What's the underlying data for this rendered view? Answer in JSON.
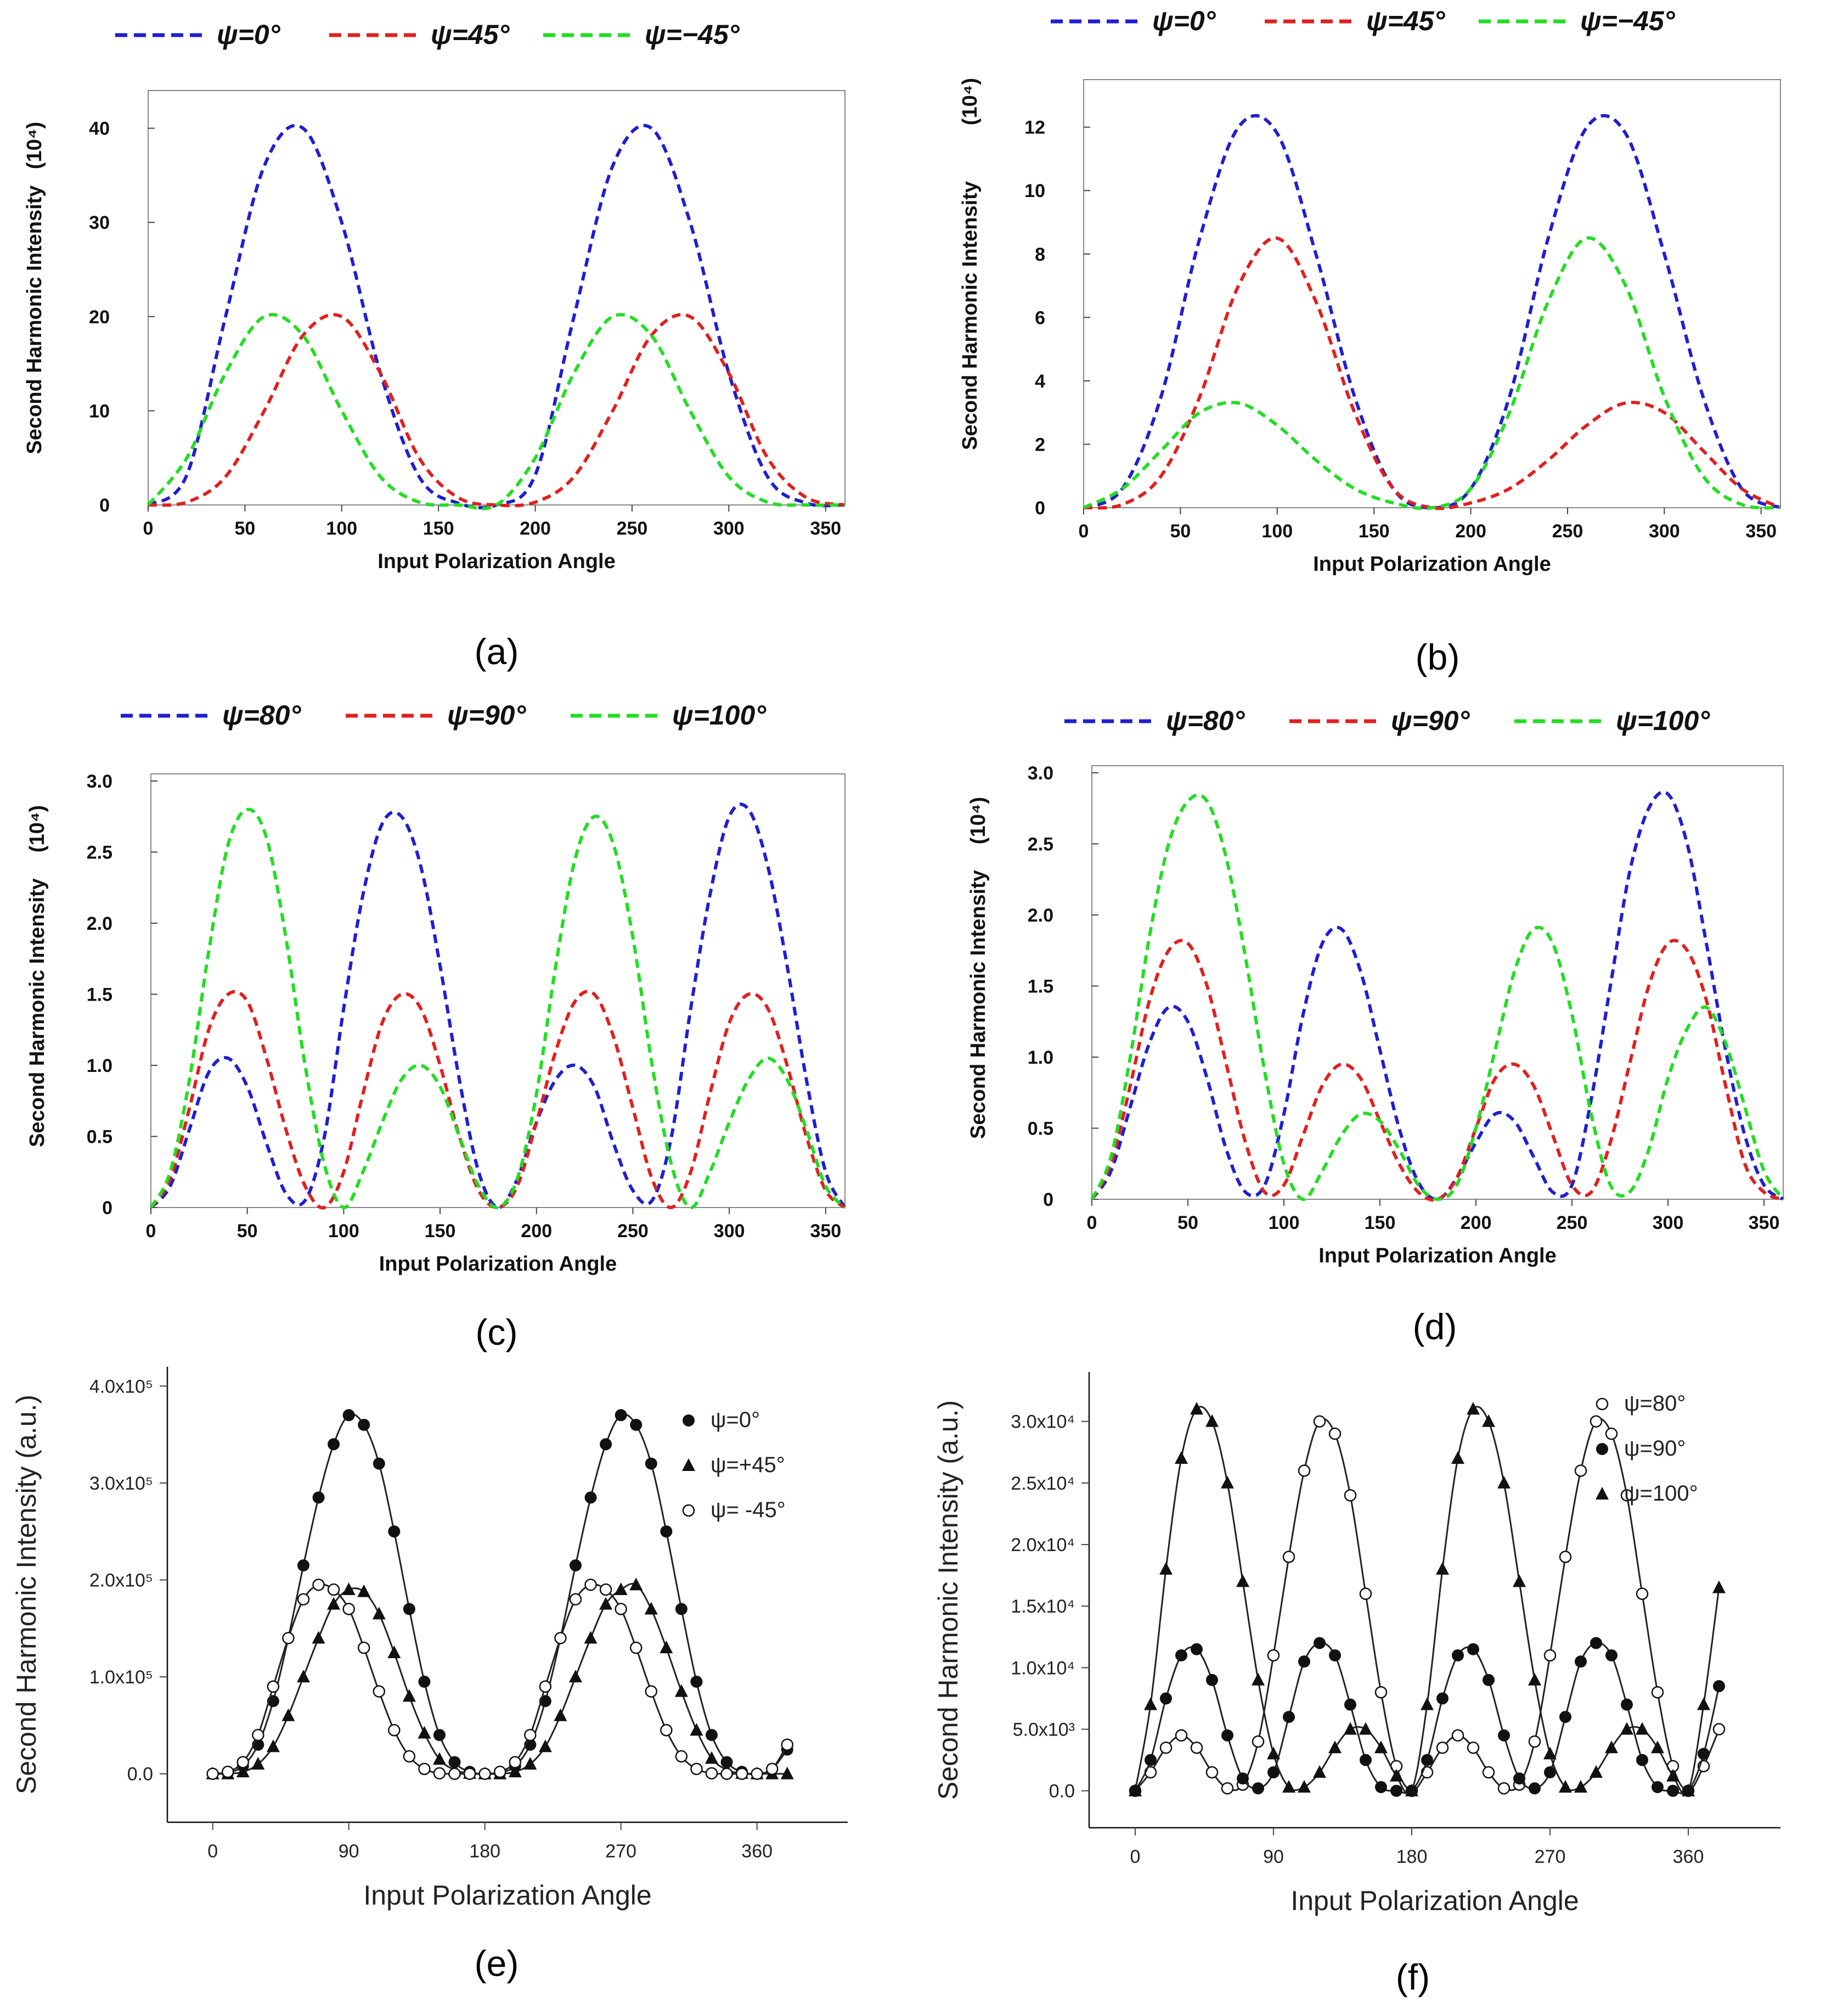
{
  "colors": {
    "blue": "#1f1fd0",
    "red": "#e02020",
    "green": "#22dd22",
    "black": "#111111"
  },
  "chart_data": [
    {
      "id": "a",
      "type": "line",
      "caption": "(a)",
      "xlabel": "Input  Polarization Angle",
      "ylabel": "Second Harmonic Intensity",
      "yunit": "(10⁴)",
      "xlim": [
        0,
        360
      ],
      "ylim": [
        0,
        44
      ],
      "xticks": [
        "0",
        "50",
        "100",
        "150",
        "200",
        "250",
        "300",
        "350"
      ],
      "yticks": [
        "0",
        "10",
        "20",
        "30",
        "40"
      ],
      "legend": [
        "ψ=0°",
        "ψ=45°",
        "ψ=−45°"
      ],
      "x": [
        0,
        20,
        40,
        60,
        80,
        100,
        120,
        140,
        160,
        180,
        200,
        220,
        240,
        260,
        280,
        300,
        320,
        340,
        360
      ],
      "series": [
        {
          "name": "ψ=0°",
          "color": "blue",
          "values": [
            0,
            3.2,
            20,
            36,
            40,
            30,
            14,
            3,
            0.2,
            0,
            3.2,
            20,
            36,
            40,
            30,
            14,
            3,
            0.2,
            0
          ]
        },
        {
          "name": "ψ=45°",
          "color": "red",
          "values": [
            0,
            0.3,
            3,
            10,
            18,
            20,
            14,
            5,
            0.8,
            0,
            0.3,
            3,
            10,
            18,
            20,
            14,
            5,
            0.8,
            0
          ]
        },
        {
          "name": "ψ=−45°",
          "color": "green",
          "values": [
            0,
            5,
            14,
            20,
            18,
            10,
            3,
            0.3,
            0,
            0,
            5,
            14,
            20,
            18,
            10,
            3,
            0.3,
            0,
            0
          ]
        }
      ]
    },
    {
      "id": "b",
      "type": "line",
      "caption": "(b)",
      "xlabel": "Input  Polarization Angle",
      "ylabel": "Second Harmonic Intensity",
      "yunit": "(10⁴)",
      "xlim": [
        0,
        360
      ],
      "ylim": [
        0,
        13.5
      ],
      "xticks": [
        "0",
        "50",
        "100",
        "150",
        "200",
        "250",
        "300",
        "350"
      ],
      "yticks": [
        "0",
        "2",
        "4",
        "6",
        "8",
        "10",
        "12"
      ],
      "legend": [
        "ψ=0°",
        "ψ=45°",
        "ψ=−45°"
      ],
      "x": [
        0,
        20,
        40,
        60,
        80,
        100,
        120,
        140,
        160,
        180,
        200,
        220,
        240,
        260,
        280,
        300,
        320,
        340,
        360
      ],
      "series": [
        {
          "name": "ψ=0°",
          "color": "blue",
          "values": [
            0,
            0.6,
            3.5,
            8.5,
            12,
            11.8,
            8,
            3.5,
            0.6,
            0,
            0.6,
            3.5,
            8.5,
            12,
            11.8,
            8,
            3.5,
            0.6,
            0
          ]
        },
        {
          "name": "ψ=45°",
          "color": "red",
          "values": [
            0,
            0.1,
            1,
            3.5,
            7,
            8.5,
            6.5,
            3,
            0.6,
            0,
            0.15,
            0.6,
            1.5,
            2.6,
            3.3,
            3,
            1.8,
            0.6,
            0
          ]
        },
        {
          "name": "ψ=−45°",
          "color": "green",
          "values": [
            0,
            0.6,
            1.8,
            3,
            3.3,
            2.6,
            1.5,
            0.6,
            0.15,
            0,
            0.6,
            3,
            6.5,
            8.5,
            7,
            3.5,
            1,
            0.1,
            0
          ]
        }
      ]
    },
    {
      "id": "c",
      "type": "line",
      "caption": "(c)",
      "xlabel": "Input Polarization Angle",
      "ylabel": "Second Harmonic Intensity",
      "yunit": "(10⁴)",
      "xlim": [
        0,
        360
      ],
      "ylim": [
        0,
        3.05
      ],
      "xticks": [
        "0",
        "50",
        "100",
        "150",
        "200",
        "250",
        "300",
        "350"
      ],
      "yticks": [
        "0",
        "0.5",
        "1.0",
        "1.5",
        "2.0",
        "2.5",
        "3.0"
      ],
      "legend": [
        "ψ=80°",
        "ψ=90°",
        "ψ=100°"
      ],
      "x": [
        0,
        10,
        20,
        30,
        40,
        50,
        60,
        70,
        80,
        90,
        100,
        110,
        120,
        130,
        140,
        150,
        160,
        170,
        180,
        190,
        200,
        210,
        220,
        230,
        240,
        250,
        260,
        270,
        280,
        290,
        300,
        310,
        320,
        330,
        340,
        350,
        360
      ],
      "series": [
        {
          "name": "ψ=80°",
          "color": "blue",
          "values": [
            0,
            0.15,
            0.55,
            0.95,
            1.05,
            0.85,
            0.45,
            0.1,
            0.05,
            0.5,
            1.4,
            2.2,
            2.7,
            2.75,
            2.4,
            1.7,
            0.9,
            0.25,
            0,
            0.2,
            0.6,
            0.9,
            1.0,
            0.85,
            0.45,
            0.12,
            0.05,
            0.5,
            1.4,
            2.2,
            2.75,
            2.8,
            2.4,
            1.7,
            0.9,
            0.25,
            0
          ]
        },
        {
          "name": "ψ=90°",
          "color": "red",
          "values": [
            0,
            0.2,
            0.7,
            1.25,
            1.5,
            1.45,
            1.05,
            0.55,
            0.15,
            0,
            0.25,
            0.8,
            1.3,
            1.5,
            1.4,
            1.0,
            0.5,
            0.12,
            0,
            0.15,
            0.6,
            1.1,
            1.45,
            1.5,
            1.2,
            0.7,
            0.2,
            0,
            0.25,
            0.8,
            1.3,
            1.5,
            1.4,
            1.0,
            0.5,
            0.12,
            0
          ]
        },
        {
          "name": "ψ=100°",
          "color": "green",
          "values": [
            0,
            0.25,
            0.9,
            1.8,
            2.55,
            2.8,
            2.6,
            1.9,
            1.0,
            0.3,
            0,
            0.25,
            0.6,
            0.9,
            1.0,
            0.85,
            0.5,
            0.15,
            0,
            0.2,
            0.8,
            1.7,
            2.45,
            2.75,
            2.55,
            1.9,
            1.0,
            0.3,
            0,
            0.25,
            0.6,
            0.9,
            1.05,
            0.9,
            0.55,
            0.15,
            0
          ]
        }
      ]
    },
    {
      "id": "d",
      "type": "line",
      "caption": "(d)",
      "xlabel": "Input Polarization Angle",
      "ylabel": "Second Harmonic Intensity",
      "yunit": "(10⁴)",
      "xlim": [
        0,
        360
      ],
      "ylim": [
        0,
        3.05
      ],
      "xticks": [
        "0",
        "50",
        "100",
        "150",
        "200",
        "250",
        "300",
        "350"
      ],
      "yticks": [
        "0",
        "0.5",
        "1.0",
        "1.5",
        "2.0",
        "2.5",
        "3.0"
      ],
      "legend": [
        "ψ=80°",
        "ψ=90°",
        "ψ=100°"
      ],
      "x": [
        0,
        10,
        20,
        30,
        40,
        50,
        60,
        70,
        80,
        90,
        100,
        110,
        120,
        130,
        140,
        150,
        160,
        170,
        180,
        190,
        200,
        210,
        220,
        230,
        240,
        250,
        260,
        270,
        280,
        290,
        300,
        310,
        320,
        330,
        340,
        350,
        360
      ],
      "series": [
        {
          "name": "ψ=80°",
          "color": "blue",
          "values": [
            0,
            0.2,
            0.65,
            1.1,
            1.35,
            1.25,
            0.85,
            0.35,
            0.05,
            0.1,
            0.6,
            1.3,
            1.8,
            1.9,
            1.6,
            1.05,
            0.5,
            0.12,
            0,
            0.15,
            0.4,
            0.6,
            0.55,
            0.3,
            0.05,
            0.1,
            0.7,
            1.5,
            2.3,
            2.75,
            2.85,
            2.5,
            1.8,
            1.05,
            0.45,
            0.1,
            0
          ]
        },
        {
          "name": "ψ=90°",
          "color": "red",
          "values": [
            0,
            0.25,
            0.8,
            1.4,
            1.75,
            1.8,
            1.5,
            0.95,
            0.4,
            0.05,
            0.1,
            0.45,
            0.8,
            0.95,
            0.85,
            0.55,
            0.25,
            0.05,
            0,
            0.15,
            0.5,
            0.85,
            0.95,
            0.8,
            0.45,
            0.1,
            0.05,
            0.4,
            0.95,
            1.5,
            1.8,
            1.75,
            1.4,
            0.8,
            0.25,
            0.05,
            0
          ]
        },
        {
          "name": "ψ=100°",
          "color": "green",
          "values": [
            0,
            0.3,
            1.0,
            1.85,
            2.5,
            2.8,
            2.8,
            2.4,
            1.7,
            0.9,
            0.25,
            0,
            0.2,
            0.45,
            0.6,
            0.55,
            0.35,
            0.1,
            0,
            0.1,
            0.5,
            1.05,
            1.6,
            1.9,
            1.8,
            1.3,
            0.6,
            0.1,
            0.05,
            0.35,
            0.85,
            1.2,
            1.35,
            1.1,
            0.65,
            0.2,
            0
          ]
        }
      ]
    },
    {
      "id": "e",
      "type": "scatter",
      "caption": "(e)",
      "xlabel": "Input Polarization Angle",
      "ylabel": "Second Harmonic Intensity (a.u.)",
      "xlim": [
        -30,
        420
      ],
      "ylim": [
        -50000,
        420000
      ],
      "xticks": [
        "0",
        "90",
        "180",
        "270",
        "360"
      ],
      "yticks": [
        "0.0",
        "1.0x10⁵",
        "2.0x10⁵",
        "3.0x10⁵",
        "4.0x10⁵"
      ],
      "legend": [
        "ψ=0°",
        "ψ=+45°",
        "ψ= -45°"
      ],
      "x": [
        0,
        10,
        20,
        30,
        40,
        50,
        60,
        70,
        80,
        90,
        100,
        110,
        120,
        130,
        140,
        150,
        160,
        170,
        180,
        190,
        200,
        210,
        220,
        230,
        240,
        250,
        260,
        270,
        280,
        290,
        300,
        310,
        320,
        330,
        340,
        350,
        360,
        370,
        380
      ],
      "series": [
        {
          "name": "ψ=0°",
          "marker": "filled-circle",
          "values": [
            0,
            1000,
            8000,
            30000,
            75000,
            140000,
            215000,
            285000,
            340000,
            370000,
            360000,
            320000,
            250000,
            170000,
            95000,
            40000,
            12000,
            2000,
            0,
            1000,
            8000,
            30000,
            75000,
            140000,
            215000,
            285000,
            340000,
            370000,
            360000,
            320000,
            250000,
            170000,
            95000,
            40000,
            12000,
            2000,
            0,
            5000,
            25000
          ]
        },
        {
          "name": "ψ=+45°",
          "marker": "filled-triangle",
          "values": [
            0,
            0,
            2000,
            10000,
            28000,
            60000,
            100000,
            140000,
            175000,
            190000,
            188000,
            165000,
            125000,
            80000,
            42000,
            15000,
            4000,
            500,
            0,
            0,
            2000,
            10000,
            28000,
            60000,
            100000,
            140000,
            175000,
            190000,
            195000,
            170000,
            130000,
            85000,
            45000,
            16000,
            4000,
            500,
            0,
            0,
            0
          ]
        },
        {
          "name": "ψ= -45°",
          "marker": "open-circle",
          "values": [
            0,
            2000,
            12000,
            40000,
            90000,
            140000,
            180000,
            195000,
            190000,
            170000,
            130000,
            85000,
            45000,
            18000,
            5000,
            500,
            0,
            0,
            0,
            2000,
            12000,
            40000,
            90000,
            140000,
            180000,
            195000,
            190000,
            170000,
            130000,
            85000,
            45000,
            18000,
            5000,
            500,
            0,
            0,
            0,
            5000,
            30000
          ]
        }
      ]
    },
    {
      "id": "f",
      "type": "scatter",
      "caption": "(f)",
      "xlabel": "Input Polarization Angle",
      "ylabel": "Second Harmonic Intensity (a.u.)",
      "xlim": [
        -30,
        420
      ],
      "ylim": [
        -3000,
        34000
      ],
      "xticks": [
        "0",
        "90",
        "180",
        "270",
        "360"
      ],
      "yticks": [
        "0.0",
        "5.0x10³",
        "1.0x10⁴",
        "1.5x10⁴",
        "2.0x10⁴",
        "2.5x10⁴",
        "3.0x10⁴"
      ],
      "legend": [
        "ψ=80°",
        "ψ=90°",
        "ψ=100°"
      ],
      "x": [
        0,
        10,
        20,
        30,
        40,
        50,
        60,
        70,
        80,
        90,
        100,
        110,
        120,
        130,
        140,
        150,
        160,
        170,
        180,
        190,
        200,
        210,
        220,
        230,
        240,
        250,
        260,
        270,
        280,
        290,
        300,
        310,
        320,
        330,
        340,
        350,
        360,
        370,
        380
      ],
      "series": [
        {
          "name": "ψ=80°",
          "marker": "open-circle",
          "values": [
            0,
            1500,
            3500,
            4500,
            3500,
            1500,
            200,
            500,
            4000,
            11000,
            19000,
            26000,
            30000,
            29000,
            24000,
            16000,
            8000,
            2000,
            0,
            1500,
            3500,
            4500,
            3500,
            1500,
            200,
            500,
            4000,
            11000,
            19000,
            26000,
            30000,
            29000,
            24000,
            16000,
            8000,
            2000,
            0,
            2000,
            5000
          ]
        },
        {
          "name": "ψ=90°",
          "marker": "filled-circle",
          "values": [
            0,
            2500,
            7500,
            11000,
            11500,
            9000,
            4500,
            1000,
            200,
            1500,
            6000,
            10500,
            12000,
            11000,
            7000,
            2500,
            300,
            0,
            0,
            2500,
            7500,
            11000,
            11500,
            9000,
            4500,
            1000,
            200,
            1500,
            6000,
            10500,
            12000,
            11000,
            7000,
            2500,
            300,
            0,
            0,
            3000,
            8500
          ]
        },
        {
          "name": "ψ=100°",
          "marker": "filled-triangle",
          "values": [
            0,
            7000,
            18000,
            27000,
            31000,
            30000,
            25000,
            17000,
            9000,
            3000,
            300,
            300,
            1500,
            3500,
            5000,
            5000,
            3500,
            1200,
            0,
            7000,
            18000,
            27000,
            31000,
            30000,
            25000,
            17000,
            9000,
            3000,
            300,
            300,
            1500,
            3500,
            5000,
            5000,
            3500,
            1200,
            0,
            7000,
            16500
          ]
        }
      ]
    }
  ]
}
